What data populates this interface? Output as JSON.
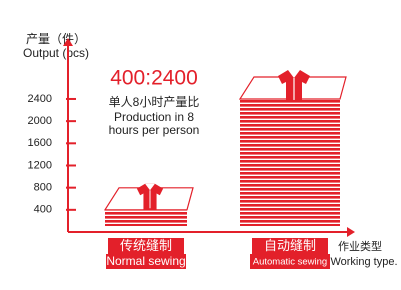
{
  "chart_data": {
    "type": "bar",
    "y_label": [
      "产量（件）",
      "Output (pcs)"
    ],
    "x_label": [
      "作业类型",
      "Working type."
    ],
    "annotations": [
      "400:2400",
      "单人8小时产量比",
      "Production in 8",
      "hours per person"
    ],
    "categories": [
      "传统缝制",
      "自动缝制"
    ],
    "category_subtitles": [
      "Normal sewing",
      "Automatic sewing"
    ],
    "values": [
      400,
      2400
    ],
    "color": "#e3202a",
    "ylim": [
      0,
      3500
    ],
    "yticks": [
      400,
      800,
      1200,
      1600,
      2000,
      2400
    ]
  }
}
